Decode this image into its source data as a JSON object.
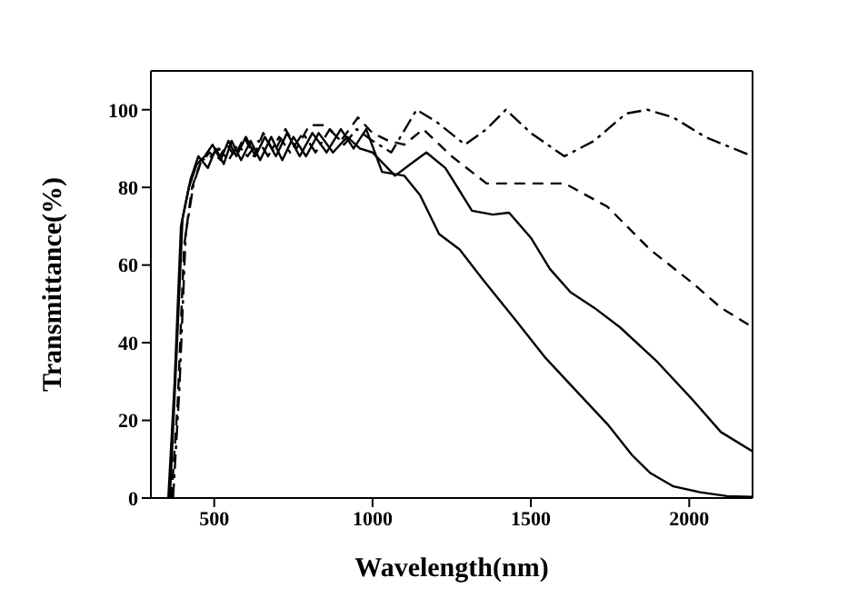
{
  "chart_data": {
    "type": "line",
    "xlabel": "Wavelength(nm)",
    "ylabel": "Transmittance(%)",
    "xlim": [
      300,
      2200
    ],
    "xticks": [
      500,
      1000,
      1500,
      2000
    ],
    "ylim": [
      0,
      110
    ],
    "yticks": [
      0,
      20,
      40,
      60,
      80,
      100
    ],
    "marker": "none",
    "series": [
      {
        "color": "#000000",
        "line_style": "solid",
        "x": [
          355,
          375,
          395,
          420,
          445,
          470,
          495,
          520,
          545,
          570,
          600,
          630,
          660,
          695,
          730,
          770,
          810,
          855,
          900,
          940,
          980,
          1030,
          1100,
          1150,
          1210,
          1275,
          1351,
          1450,
          1547,
          1650,
          1742,
          1820,
          1876,
          1950,
          2034,
          2120,
          2200
        ],
        "values": [
          0,
          30,
          70,
          80,
          86,
          88,
          91,
          87,
          92,
          88,
          93,
          88,
          93,
          88,
          94,
          88,
          94,
          89,
          95,
          90,
          95,
          84,
          83,
          78,
          68,
          64,
          56,
          46,
          36,
          27,
          19,
          11,
          6.5,
          3,
          1.5,
          0.5,
          0.3
        ]
      },
      {
        "color": "#000000",
        "line_style": "solid",
        "x": [
          360,
          380,
          400,
          425,
          450,
          480,
          505,
          530,
          555,
          585,
          615,
          645,
          680,
          715,
          750,
          790,
          830,
          875,
          920,
          960,
          1000,
          1071,
          1120,
          1170,
          1230,
          1314,
          1380,
          1431,
          1500,
          1560,
          1625,
          1700,
          1781,
          1900,
          2014,
          2100,
          2200
        ],
        "values": [
          0,
          35,
          72,
          82,
          88,
          85,
          90,
          86,
          92,
          87,
          92,
          87,
          93,
          87,
          93,
          88,
          94,
          89,
          93,
          90,
          89,
          83,
          86,
          89,
          85,
          74,
          73,
          73.5,
          67,
          59,
          53,
          49,
          44,
          35,
          25,
          17,
          12
        ]
      },
      {
        "color": "#000000",
        "line_style": "dashed",
        "x": [
          365,
          385,
          405,
          430,
          455,
          485,
          510,
          540,
          565,
          595,
          625,
          655,
          690,
          725,
          760,
          800,
          850,
          900,
          954,
          1000,
          1050,
          1100,
          1160,
          1250,
          1360,
          1500,
          1607,
          1742,
          1876,
          2016,
          2100,
          2200
        ],
        "values": [
          0,
          25,
          65,
          80,
          86,
          89,
          87,
          91,
          88,
          93,
          88,
          94,
          89,
          95,
          90,
          96,
          96,
          92,
          98,
          94,
          92,
          91,
          95,
          88,
          81,
          81,
          81,
          75,
          64,
          55,
          49,
          44
        ]
      },
      {
        "color": "#000000",
        "line_style": "dashdot",
        "x": [
          370,
          390,
          410,
          435,
          460,
          490,
          515,
          545,
          575,
          605,
          640,
          670,
          705,
          740,
          780,
          820,
          865,
          910,
          950,
          1000,
          1059,
          1139,
          1200,
          1292,
          1360,
          1421,
          1500,
          1606,
          1700,
          1800,
          1868,
          1950,
          2050,
          2200
        ],
        "values": [
          0,
          28,
          68,
          81,
          87,
          88,
          90,
          87,
          91,
          88,
          92,
          88,
          93,
          89,
          94,
          89,
          95,
          91,
          95,
          92,
          89,
          100,
          97,
          91,
          95,
          100,
          94,
          88,
          92,
          99,
          100,
          98,
          93,
          88
        ]
      }
    ]
  }
}
